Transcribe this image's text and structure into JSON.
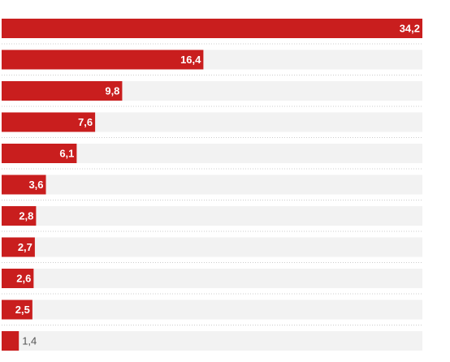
{
  "chart_data": {
    "type": "hbar",
    "values": [
      34.2,
      16.4,
      9.8,
      7.6,
      6.1,
      3.6,
      2.8,
      2.7,
      2.6,
      2.5,
      1.4
    ],
    "value_labels": [
      "34,2",
      "16,4",
      "9,8",
      "7,6",
      "6,1",
      "3,6",
      "2,8",
      "2,7",
      "2,6",
      "2,5",
      "1,4"
    ],
    "color": "#c91e1e",
    "xlim": [
      0,
      34.2
    ]
  }
}
